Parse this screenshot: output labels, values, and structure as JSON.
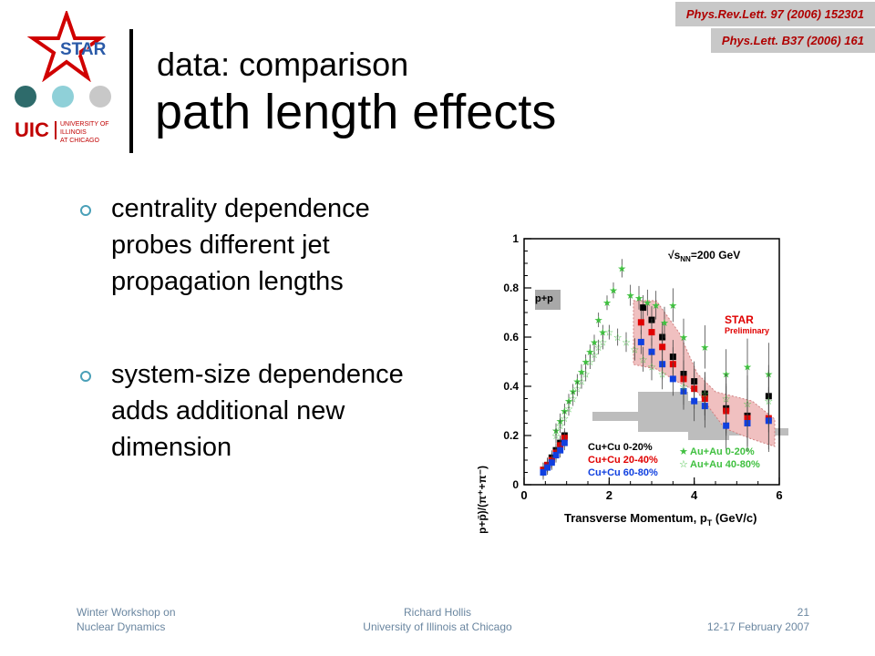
{
  "slide": {
    "refs": [
      "Phys.Rev.Lett. 97 (2006) 152301",
      "Phys.Lett. B37 (2006) 161"
    ],
    "title_line1": "data: comparison",
    "title_line2": "path length effects",
    "logos": {
      "star_text": "STAR",
      "uic_text": "UIC",
      "uic_sub1": "UNIVERSITY OF ILLINOIS",
      "uic_sub2": "AT CHICAGO"
    },
    "bullets": [
      "centrality dependence probes different jet propagation lengths",
      "system-size dependence adds additional new dimension"
    ],
    "footer": {
      "left_line1": "Winter Workshop on",
      "left_line2": "Nuclear Dynamics",
      "center_line1": "Richard Hollis",
      "center_line2": "University of Illinois at Chicago",
      "right_line1": "21",
      "right_line2": "12-17 February 2007"
    },
    "colors": {
      "accent_dark": "#2e6b6b",
      "accent_light": "#8fd0d8",
      "accent_gray": "#c8c8c8",
      "ref_red": "#b00000",
      "footer_text": "#6a86a0"
    }
  },
  "chart_data": {
    "type": "scatter",
    "ylabel": "(p+p̄)/(π⁺+π⁻)",
    "xlabel": "Transverse Momentum, p",
    "xlabel_sub": "T",
    "xlabel_unit": " (GeV/c)",
    "energy_label": "√s",
    "energy_sub": "NN",
    "energy_value": "=200 GeV",
    "pp_label": "p+p",
    "star_label": "STAR",
    "star_sub": "Preliminary",
    "xlim": [
      0,
      6
    ],
    "ylim": [
      0,
      1
    ],
    "x_ticks": [
      "0",
      "2",
      "4",
      "6"
    ],
    "y_ticks": [
      "0",
      "0.2",
      "0.4",
      "0.6",
      "0.8",
      "1"
    ],
    "series": [
      {
        "name": "Cu+Cu 0-20%",
        "color": "#000000",
        "marker": "square",
        "x": [
          0.45,
          0.55,
          0.65,
          0.75,
          0.85,
          0.95,
          2.8,
          3.0,
          3.25,
          3.5,
          3.75,
          4.0,
          4.25,
          4.75,
          5.25,
          5.75
        ],
        "y": [
          0.06,
          0.08,
          0.11,
          0.14,
          0.17,
          0.2,
          0.72,
          0.67,
          0.6,
          0.52,
          0.45,
          0.42,
          0.37,
          0.31,
          0.28,
          0.36
        ]
      },
      {
        "name": "Cu+Cu 20-40%",
        "color": "#e00000",
        "marker": "square",
        "x": [
          0.45,
          0.55,
          0.65,
          0.75,
          0.85,
          0.95,
          2.75,
          3.0,
          3.25,
          3.5,
          3.75,
          4.0,
          4.25,
          4.75,
          5.25,
          5.75
        ],
        "y": [
          0.06,
          0.08,
          0.1,
          0.13,
          0.16,
          0.19,
          0.66,
          0.62,
          0.56,
          0.49,
          0.43,
          0.39,
          0.35,
          0.3,
          0.27,
          0.27
        ]
      },
      {
        "name": "Cu+Cu 60-80%",
        "color": "#1040e0",
        "marker": "square",
        "x": [
          0.45,
          0.55,
          0.65,
          0.75,
          0.85,
          0.95,
          2.75,
          3.0,
          3.25,
          3.5,
          3.75,
          4.0,
          4.25,
          4.75,
          5.25,
          5.75
        ],
        "y": [
          0.05,
          0.07,
          0.09,
          0.12,
          0.14,
          0.17,
          0.58,
          0.54,
          0.49,
          0.43,
          0.38,
          0.34,
          0.32,
          0.24,
          0.25,
          0.26
        ]
      },
      {
        "name": "Au+Au 0-20%",
        "color": "#40c040",
        "marker": "star",
        "x": [
          0.75,
          0.85,
          0.95,
          1.05,
          1.15,
          1.25,
          1.35,
          1.45,
          1.55,
          1.65,
          1.75,
          1.85,
          1.95,
          2.1,
          2.3,
          2.5,
          2.7,
          2.9,
          3.1,
          3.3,
          3.5,
          3.75,
          4.25,
          4.75,
          5.25,
          5.75
        ],
        "y": [
          0.22,
          0.26,
          0.3,
          0.34,
          0.38,
          0.42,
          0.46,
          0.5,
          0.54,
          0.58,
          0.67,
          0.62,
          0.74,
          0.79,
          0.88,
          0.77,
          0.76,
          0.74,
          0.73,
          0.66,
          0.73,
          0.6,
          0.56,
          0.45,
          0.48,
          0.45
        ]
      },
      {
        "name": "Au+Au 40-80%",
        "color": "#40c040",
        "marker": "open-star",
        "x": [
          0.75,
          0.85,
          0.95,
          1.05,
          1.15,
          1.25,
          1.35,
          1.45,
          1.55,
          1.65,
          1.75,
          1.85,
          2.0,
          2.2,
          2.4,
          2.6,
          2.8,
          3.0,
          3.25,
          3.75,
          4.25,
          4.75,
          5.25,
          5.75
        ],
        "y": [
          0.2,
          0.24,
          0.27,
          0.31,
          0.35,
          0.39,
          0.42,
          0.45,
          0.5,
          0.53,
          0.56,
          0.58,
          0.62,
          0.6,
          0.58,
          0.55,
          0.51,
          0.48,
          0.45,
          0.4,
          0.37,
          0.35,
          0.33,
          0.34
        ]
      }
    ]
  }
}
